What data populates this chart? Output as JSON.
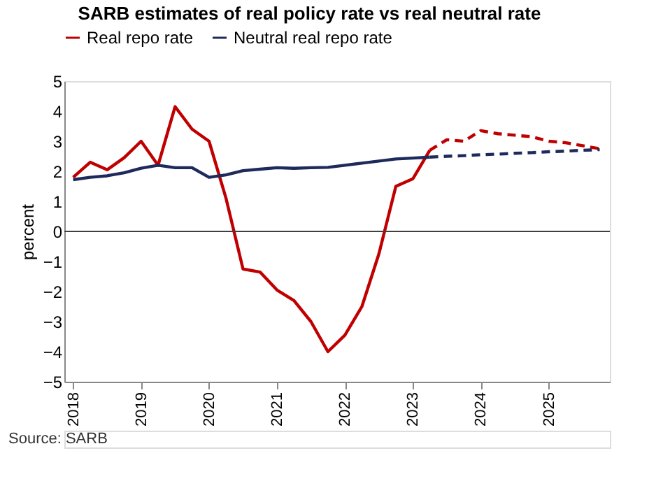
{
  "chart_data": {
    "type": "line",
    "title": "SARB estimates of real policy rate vs real neutral rate",
    "ylabel": "percent",
    "series": [
      {
        "name": "Real repo rate",
        "color": "#c00000",
        "line_style": "solid",
        "x": [
          2018,
          2018.25,
          2018.5,
          2018.75,
          2019,
          2019.25,
          2019.5,
          2019.75,
          2020,
          2020.25,
          2020.5,
          2020.75,
          2021,
          2021.25,
          2021.5,
          2021.75,
          2022,
          2022.25,
          2022.5,
          2022.75,
          2023,
          2023.25
        ],
        "values": [
          1.8,
          2.3,
          2.05,
          2.45,
          3.0,
          2.2,
          4.15,
          3.4,
          3.0,
          1.1,
          -1.25,
          -1.35,
          -1.95,
          -2.3,
          -3.0,
          -4.0,
          -3.45,
          -2.5,
          -0.75,
          1.5,
          1.75,
          2.7
        ]
      },
      {
        "color": "#c00000",
        "line_style": "dashed",
        "x": [
          2023.25,
          2023.5,
          2023.75,
          2024,
          2024.25,
          2024.5,
          2024.75,
          2025,
          2025.25,
          2025.5,
          2025.75
        ],
        "values": [
          2.7,
          3.05,
          3.0,
          3.35,
          3.25,
          3.2,
          3.15,
          3.0,
          2.95,
          2.85,
          2.75
        ]
      },
      {
        "name": "Neutral real repo rate",
        "color": "#1f2a5c",
        "line_style": "solid",
        "x": [
          2018,
          2018.25,
          2018.5,
          2018.75,
          2019,
          2019.25,
          2019.5,
          2019.75,
          2020,
          2020.25,
          2020.5,
          2020.75,
          2021,
          2021.25,
          2021.5,
          2021.75,
          2022,
          2022.25,
          2022.5,
          2022.75,
          2023,
          2023.25
        ],
        "values": [
          1.72,
          1.8,
          1.85,
          1.95,
          2.1,
          2.2,
          2.12,
          2.12,
          1.8,
          1.88,
          2.02,
          2.07,
          2.12,
          2.1,
          2.12,
          2.13,
          2.2,
          2.27,
          2.34,
          2.41,
          2.44,
          2.47
        ]
      },
      {
        "color": "#1f2a5c",
        "line_style": "dashed",
        "x": [
          2023.25,
          2023.5,
          2023.75,
          2024,
          2024.25,
          2024.5,
          2024.75,
          2025,
          2025.25,
          2025.5,
          2025.75
        ],
        "values": [
          2.47,
          2.5,
          2.52,
          2.55,
          2.57,
          2.6,
          2.62,
          2.65,
          2.67,
          2.7,
          2.72
        ]
      }
    ],
    "xlim": [
      2017.87,
      2025.9
    ],
    "xticks": [
      2018,
      2019,
      2020,
      2021,
      2022,
      2023,
      2024,
      2025
    ],
    "ylim": [
      -5,
      5
    ],
    "yticks": [
      -5,
      -4,
      -3,
      -2,
      -1,
      0,
      1,
      2,
      3,
      4,
      5
    ],
    "ref_lines": [
      {
        "axis": "y",
        "value": 0
      }
    ],
    "grid": false,
    "legend": "top",
    "marker": "none",
    "annotations": [
      "Source: SARB"
    ]
  }
}
